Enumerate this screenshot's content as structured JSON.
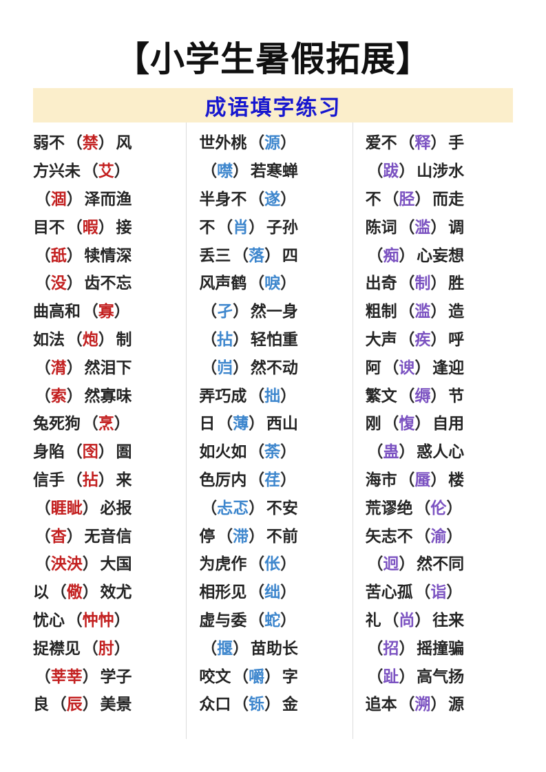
{
  "title": "【小学生暑假拓展】",
  "subtitle": "成语填字练习",
  "punctuation": {
    "paren_open": "（",
    "paren_close": "）"
  },
  "colors": {
    "title_text": "#101010",
    "subtitle_text": "#1717cf",
    "subtitle_background": "#fbeecb",
    "body_text": "#242424",
    "divider": "#dcdcdc",
    "column1_accent": "#c32020",
    "column2_accent": "#3d86cd",
    "column3_accent": "#7b52c1"
  },
  "columns": [
    {
      "accent": "#c32020",
      "items": [
        {
          "pre": "弱不",
          "ans": "禁",
          "post": "风"
        },
        {
          "pre": "方兴未",
          "ans": "艾",
          "post": ""
        },
        {
          "pre": "",
          "ans": "涸",
          "post": "泽而渔"
        },
        {
          "pre": "目不",
          "ans": "暇",
          "post": "接"
        },
        {
          "pre": "",
          "ans": "舐",
          "post": "犊情深"
        },
        {
          "pre": "",
          "ans": "没",
          "post": "齿不忘"
        },
        {
          "pre": "曲高和",
          "ans": "寡",
          "post": ""
        },
        {
          "pre": "如法",
          "ans": "炮",
          "post": "制"
        },
        {
          "pre": "",
          "ans": "潸",
          "post": "然泪下"
        },
        {
          "pre": "",
          "ans": "索",
          "post": "然寡味"
        },
        {
          "pre": "兔死狗",
          "ans": "烹",
          "post": ""
        },
        {
          "pre": "身陷",
          "ans": "囹",
          "post": "圄"
        },
        {
          "pre": "信手",
          "ans": "拈",
          "post": "来"
        },
        {
          "pre": "",
          "ans": "睚眦",
          "post": "必报"
        },
        {
          "pre": "",
          "ans": "杳",
          "post": "无音信"
        },
        {
          "pre": "",
          "ans": "泱泱",
          "post": "大国"
        },
        {
          "pre": "以",
          "ans": "儆",
          "post": "效尤"
        },
        {
          "pre": "忧心",
          "ans": "忡忡",
          "post": ""
        },
        {
          "pre": "捉襟见",
          "ans": "肘",
          "post": ""
        },
        {
          "pre": "",
          "ans": "莘莘",
          "post": "学子"
        },
        {
          "pre": "良",
          "ans": "辰",
          "post": "美景"
        }
      ]
    },
    {
      "accent": "#3d86cd",
      "items": [
        {
          "pre": "世外桃",
          "ans": "源",
          "post": ""
        },
        {
          "pre": "",
          "ans": "噤",
          "post": "若寒蝉"
        },
        {
          "pre": "半身不",
          "ans": "遂",
          "post": ""
        },
        {
          "pre": "不",
          "ans": "肖",
          "post": "子孙"
        },
        {
          "pre": "丢三",
          "ans": "落",
          "post": "四"
        },
        {
          "pre": "风声鹤",
          "ans": "唳",
          "post": ""
        },
        {
          "pre": "",
          "ans": "孑",
          "post": "然一身"
        },
        {
          "pre": "",
          "ans": "拈",
          "post": "轻怕重"
        },
        {
          "pre": "",
          "ans": "岿",
          "post": "然不动"
        },
        {
          "pre": "弄巧成",
          "ans": "拙",
          "post": ""
        },
        {
          "pre": "日",
          "ans": "薄",
          "post": "西山"
        },
        {
          "pre": "如火如",
          "ans": "荼",
          "post": ""
        },
        {
          "pre": "色厉内",
          "ans": "荏",
          "post": ""
        },
        {
          "pre": "",
          "ans": "忐忑",
          "post": "不安"
        },
        {
          "pre": "停",
          "ans": "滞",
          "post": "不前"
        },
        {
          "pre": "为虎作",
          "ans": "伥",
          "post": ""
        },
        {
          "pre": "相形见",
          "ans": "绌",
          "post": ""
        },
        {
          "pre": "虚与委",
          "ans": "蛇",
          "post": ""
        },
        {
          "pre": "",
          "ans": "揠",
          "post": "苗助长"
        },
        {
          "pre": "咬文",
          "ans": "嚼",
          "post": "字"
        },
        {
          "pre": "众口",
          "ans": "铄",
          "post": "金"
        }
      ]
    },
    {
      "accent": "#7b52c1",
      "items": [
        {
          "pre": "爱不",
          "ans": "释",
          "post": "手"
        },
        {
          "pre": "",
          "ans": "跋",
          "post": "山涉水"
        },
        {
          "pre": "不",
          "ans": "胫",
          "post": "而走"
        },
        {
          "pre": "陈词",
          "ans": "滥",
          "post": "调"
        },
        {
          "pre": "",
          "ans": "痴",
          "post": "心妄想"
        },
        {
          "pre": "出奇",
          "ans": "制",
          "post": "胜"
        },
        {
          "pre": "粗制",
          "ans": "滥",
          "post": "造"
        },
        {
          "pre": "大声",
          "ans": "疾",
          "post": "呼"
        },
        {
          "pre": "阿",
          "ans": "谀",
          "post": "逢迎"
        },
        {
          "pre": "繁文",
          "ans": "缛",
          "post": "节"
        },
        {
          "pre": "刚",
          "ans": "愎",
          "post": "自用"
        },
        {
          "pre": "",
          "ans": "蛊",
          "post": "惑人心"
        },
        {
          "pre": "海市",
          "ans": "蜃",
          "post": "楼"
        },
        {
          "pre": "荒谬绝",
          "ans": "伦",
          "post": ""
        },
        {
          "pre": "矢志不",
          "ans": "渝",
          "post": ""
        },
        {
          "pre": "",
          "ans": "迥",
          "post": "然不同"
        },
        {
          "pre": "苦心孤",
          "ans": "诣",
          "post": ""
        },
        {
          "pre": "礼",
          "ans": "尚",
          "post": "往来"
        },
        {
          "pre": "",
          "ans": "招",
          "post": "摇撞骗"
        },
        {
          "pre": "",
          "ans": "趾",
          "post": "高气扬"
        },
        {
          "pre": "追本",
          "ans": "溯",
          "post": "源"
        }
      ]
    }
  ]
}
